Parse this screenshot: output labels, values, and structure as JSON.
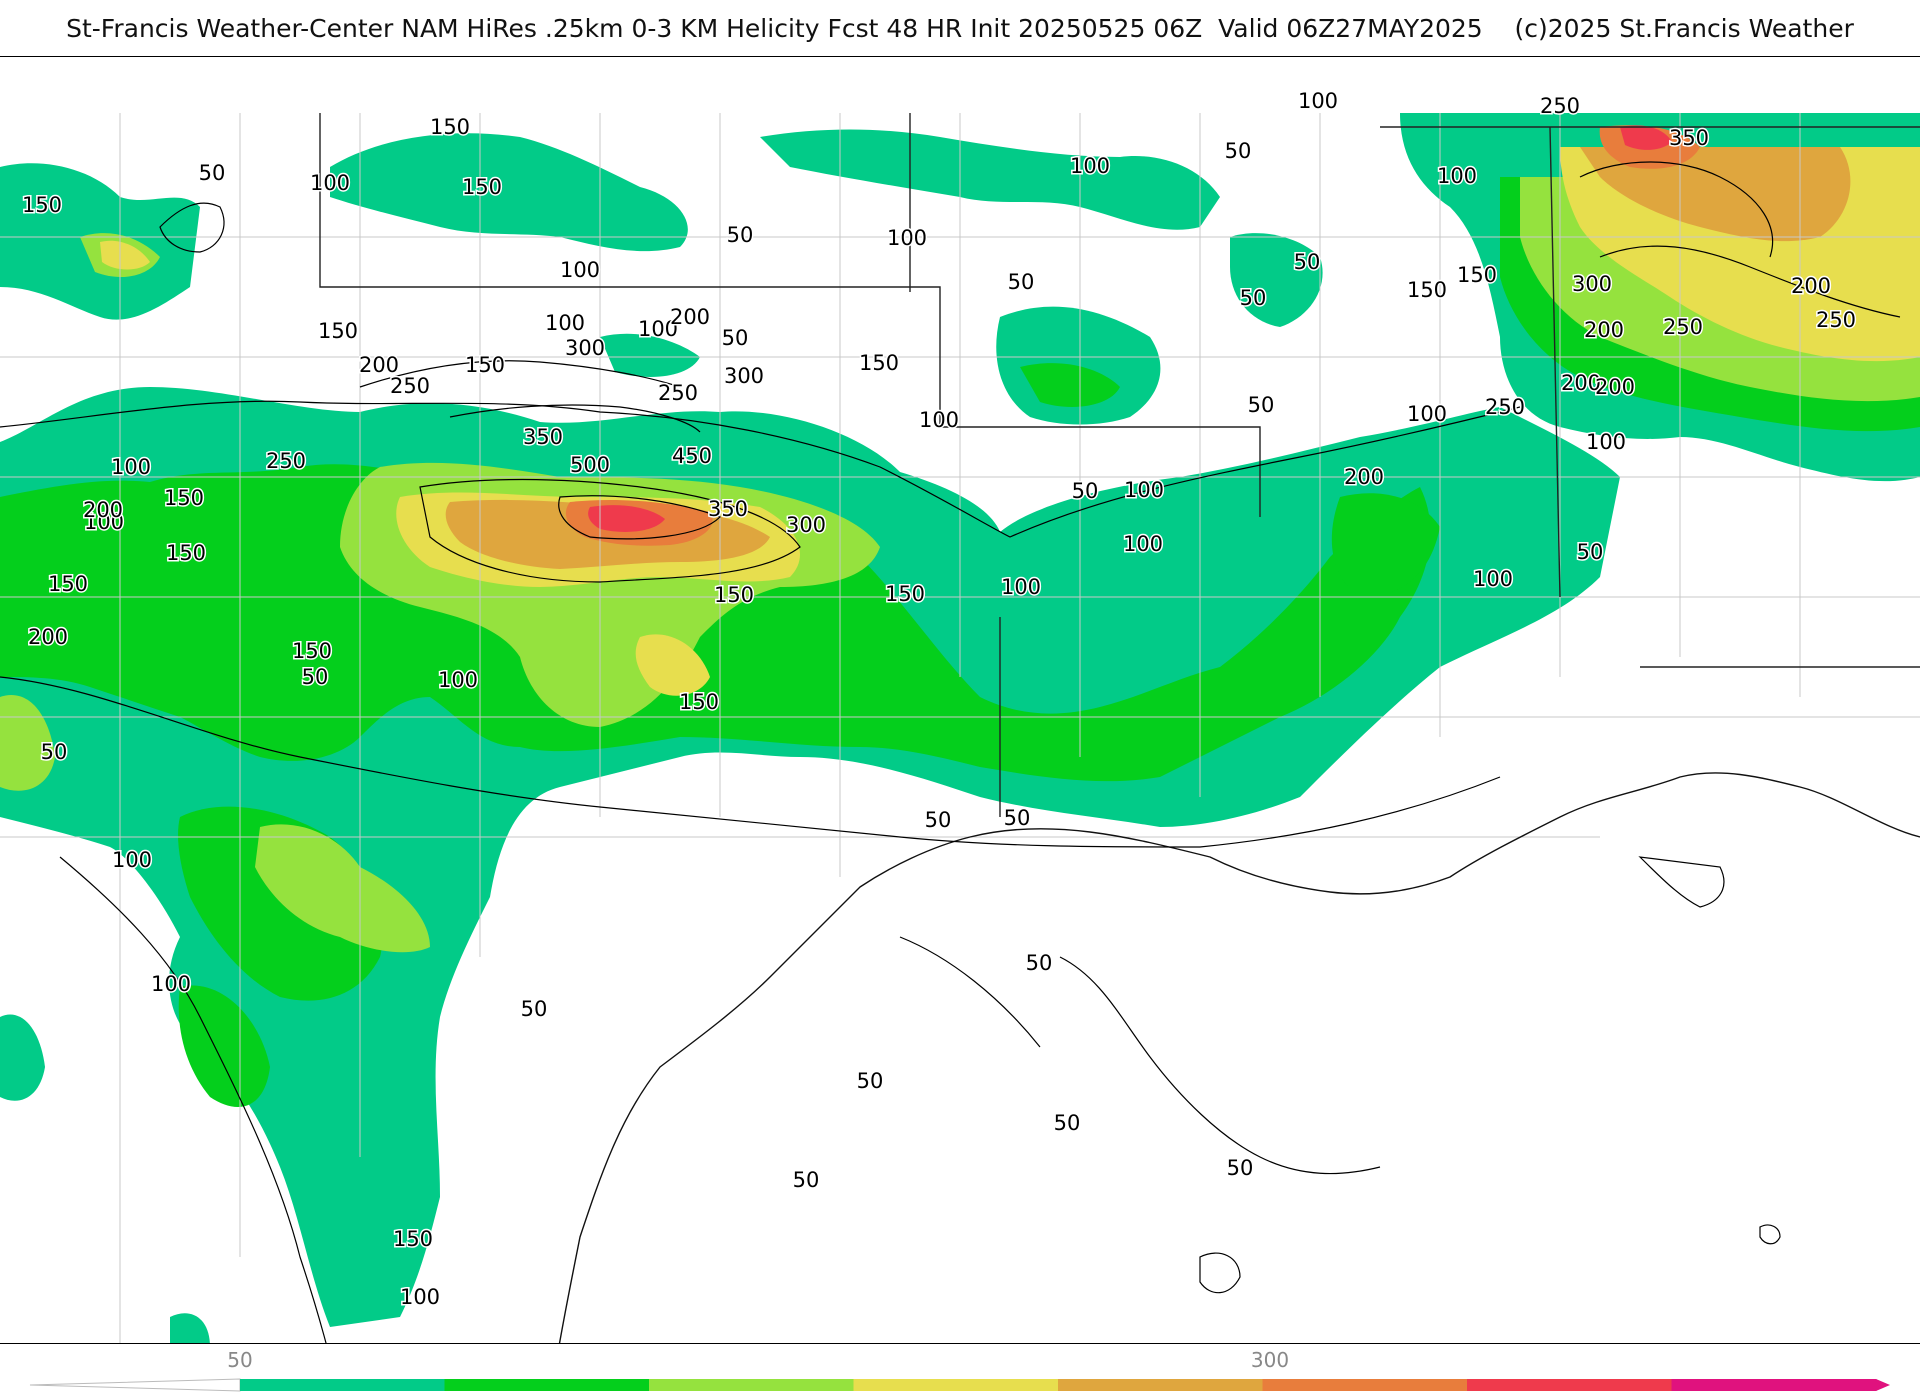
{
  "header": {
    "title": "St-Francis Weather-Center NAM HiRes .25km 0-3 KM Helicity Fcst 48 HR Init 20250525 06Z  Valid 06Z27MAY2025    (c)2025 St.Francis Weather"
  },
  "map": {
    "field": "0-3 KM Helicity",
    "contour_labels": [
      "50",
      "100",
      "150",
      "200",
      "250",
      "300",
      "350",
      "450",
      "500"
    ],
    "labels": [
      {
        "text": "150"
      },
      {
        "text": "50"
      },
      {
        "text": "100"
      },
      {
        "text": "150"
      },
      {
        "text": "150"
      },
      {
        "text": "100"
      },
      {
        "text": "50"
      },
      {
        "text": "100"
      },
      {
        "text": "100"
      },
      {
        "text": "50"
      },
      {
        "text": "100"
      },
      {
        "text": "50"
      },
      {
        "text": "100"
      },
      {
        "text": "250"
      },
      {
        "text": "350"
      },
      {
        "text": "100"
      },
      {
        "text": "150"
      },
      {
        "text": "50"
      },
      {
        "text": "150"
      },
      {
        "text": "50"
      },
      {
        "text": "300"
      },
      {
        "text": "200"
      },
      {
        "text": "250"
      },
      {
        "text": "250"
      },
      {
        "text": "200"
      },
      {
        "text": "100"
      },
      {
        "text": "50"
      },
      {
        "text": "150"
      },
      {
        "text": "300"
      },
      {
        "text": "200"
      },
      {
        "text": "150"
      },
      {
        "text": "200"
      },
      {
        "text": "250"
      },
      {
        "text": "300"
      },
      {
        "text": "250"
      },
      {
        "text": "150"
      },
      {
        "text": "100"
      },
      {
        "text": "150"
      },
      {
        "text": "100"
      },
      {
        "text": "250"
      },
      {
        "text": "350"
      },
      {
        "text": "500"
      },
      {
        "text": "450"
      },
      {
        "text": "100"
      },
      {
        "text": "50"
      },
      {
        "text": "100"
      },
      {
        "text": "200"
      },
      {
        "text": "150"
      },
      {
        "text": "350"
      },
      {
        "text": "300"
      },
      {
        "text": "100"
      },
      {
        "text": "200"
      },
      {
        "text": "250"
      },
      {
        "text": "200"
      },
      {
        "text": "200"
      },
      {
        "text": "150"
      },
      {
        "text": "50"
      },
      {
        "text": "100"
      },
      {
        "text": "150"
      },
      {
        "text": "100"
      },
      {
        "text": "150"
      },
      {
        "text": "150"
      },
      {
        "text": "200"
      },
      {
        "text": "100"
      },
      {
        "text": "100"
      },
      {
        "text": "100"
      },
      {
        "text": "50"
      },
      {
        "text": "150"
      },
      {
        "text": "50"
      },
      {
        "text": "50"
      },
      {
        "text": "50"
      },
      {
        "text": "100"
      },
      {
        "text": "100"
      },
      {
        "text": "50"
      },
      {
        "text": "50"
      },
      {
        "text": "50"
      },
      {
        "text": "50"
      },
      {
        "text": "50"
      },
      {
        "text": "150"
      },
      {
        "text": "100"
      },
      {
        "text": "50"
      },
      {
        "text": "50"
      }
    ]
  },
  "colorbar": {
    "tick_labels": [
      "50",
      "300"
    ],
    "colors": [
      "#02cb88",
      "#04cf1c",
      "#95e23e",
      "#e7de4e",
      "#dfa63e",
      "#e87d3c",
      "#ef3a4c",
      "#e0127e"
    ]
  }
}
